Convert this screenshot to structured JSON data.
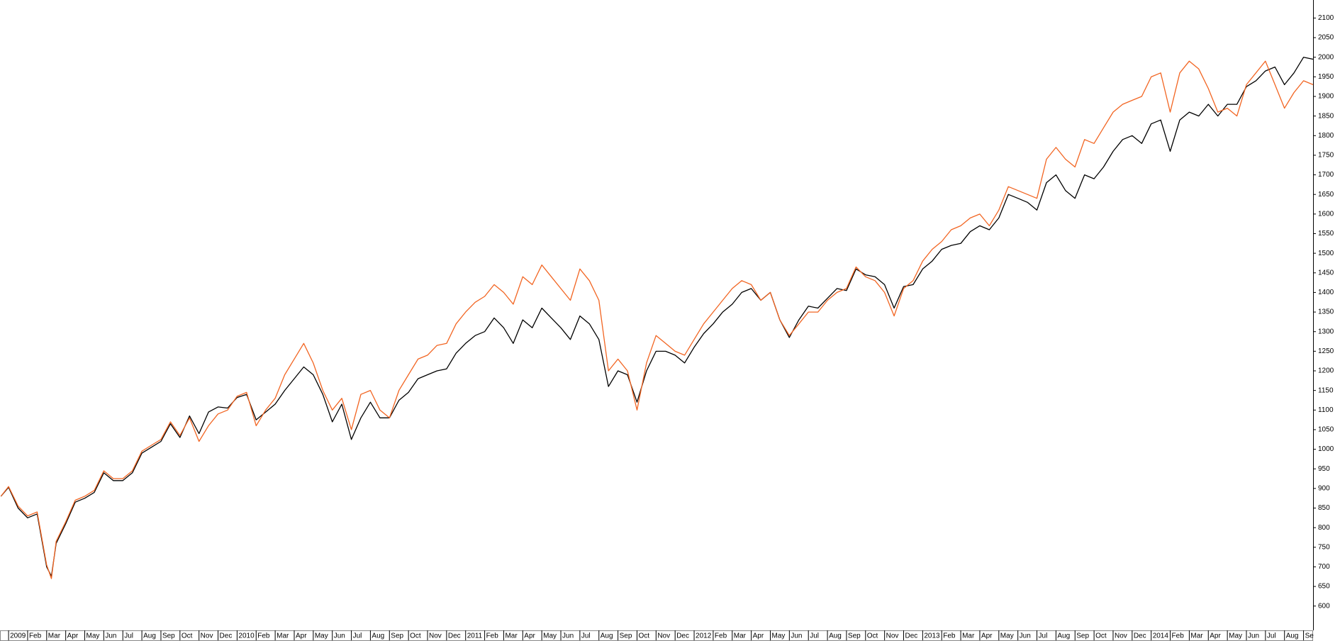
{
  "chart_data": {
    "type": "line",
    "x": [
      -0.4,
      0,
      0.5,
      1,
      1.5,
      2,
      2.25,
      2.5,
      3,
      3.5,
      4,
      4.5,
      5,
      5.5,
      6,
      6.5,
      7,
      7.5,
      8,
      8.5,
      9,
      9.5,
      10,
      10.5,
      11,
      11.5,
      12,
      12.5,
      13,
      13.5,
      14,
      14.5,
      15,
      15.5,
      16,
      16.5,
      17,
      17.5,
      18,
      18.5,
      19,
      19.5,
      20,
      20.5,
      21,
      21.5,
      22,
      22.5,
      23,
      23.5,
      24,
      24.5,
      25,
      25.5,
      26,
      26.5,
      27,
      27.5,
      28,
      28.5,
      29,
      29.5,
      30,
      30.5,
      31,
      31.5,
      32,
      32.5,
      33,
      33.5,
      34,
      34.5,
      35,
      35.5,
      36,
      36.5,
      37,
      37.5,
      38,
      38.5,
      39,
      39.5,
      40,
      40.5,
      41,
      41.5,
      42,
      42.5,
      43,
      43.5,
      44,
      44.5,
      45,
      45.5,
      46,
      46.5,
      47,
      47.5,
      48,
      48.5,
      49,
      49.5,
      50,
      50.5,
      51,
      51.5,
      52,
      52.5,
      53,
      53.5,
      54,
      54.5,
      55,
      55.5,
      56,
      56.5,
      57,
      57.5,
      58,
      58.5,
      59,
      59.5,
      60,
      60.5,
      61,
      61.5,
      62,
      62.5,
      63,
      63.5,
      64,
      64.5,
      65,
      65.5,
      66,
      66.5,
      67,
      67.5,
      68,
      68.5
    ],
    "series": [
      {
        "color": "#000000",
        "values": [
          880,
          903,
          850,
          825,
          835,
          700,
          676,
          760,
          810,
          865,
          875,
          890,
          940,
          920,
          920,
          940,
          990,
          1005,
          1020,
          1065,
          1030,
          1085,
          1040,
          1095,
          1108,
          1105,
          1132,
          1140,
          1075,
          1095,
          1115,
          1150,
          1180,
          1210,
          1190,
          1140,
          1070,
          1115,
          1025,
          1080,
          1120,
          1080,
          1080,
          1125,
          1145,
          1180,
          1190,
          1200,
          1205,
          1245,
          1270,
          1290,
          1300,
          1335,
          1310,
          1270,
          1330,
          1310,
          1360,
          1335,
          1310,
          1280,
          1340,
          1320,
          1280,
          1160,
          1200,
          1190,
          1120,
          1200,
          1250,
          1250,
          1240,
          1220,
          1260,
          1295,
          1320,
          1350,
          1370,
          1400,
          1410,
          1380,
          1400,
          1330,
          1285,
          1330,
          1365,
          1360,
          1385,
          1410,
          1405,
          1460,
          1445,
          1440,
          1420,
          1360,
          1415,
          1420,
          1460,
          1480,
          1510,
          1520,
          1525,
          1555,
          1570,
          1560,
          1590,
          1650,
          1640,
          1630,
          1610,
          1680,
          1700,
          1660,
          1640,
          1700,
          1690,
          1720,
          1760,
          1790,
          1800,
          1780,
          1830,
          1840,
          1760,
          1840,
          1860,
          1850,
          1880,
          1850,
          1880,
          1880,
          1925,
          1940,
          1965,
          1975,
          1930,
          1960,
          2000,
          1995
        ]
      },
      {
        "color": "#f26522",
        "values": [
          880,
          905,
          855,
          830,
          840,
          705,
          670,
          765,
          815,
          870,
          880,
          895,
          945,
          925,
          925,
          945,
          995,
          1010,
          1025,
          1070,
          1035,
          1080,
          1020,
          1060,
          1090,
          1100,
          1135,
          1145,
          1060,
          1100,
          1130,
          1190,
          1230,
          1270,
          1220,
          1150,
          1100,
          1130,
          1050,
          1140,
          1150,
          1100,
          1080,
          1150,
          1190,
          1230,
          1240,
          1265,
          1270,
          1320,
          1350,
          1375,
          1390,
          1420,
          1400,
          1370,
          1440,
          1420,
          1470,
          1440,
          1410,
          1380,
          1460,
          1430,
          1380,
          1200,
          1230,
          1200,
          1100,
          1220,
          1290,
          1270,
          1250,
          1240,
          1280,
          1320,
          1350,
          1380,
          1410,
          1430,
          1420,
          1380,
          1400,
          1330,
          1290,
          1320,
          1350,
          1350,
          1380,
          1400,
          1410,
          1465,
          1440,
          1430,
          1400,
          1340,
          1410,
          1430,
          1480,
          1510,
          1530,
          1560,
          1570,
          1590,
          1600,
          1570,
          1610,
          1670,
          1660,
          1650,
          1640,
          1740,
          1770,
          1740,
          1720,
          1790,
          1780,
          1820,
          1860,
          1880,
          1890,
          1900,
          1950,
          1960,
          1860,
          1960,
          1990,
          1970,
          1920,
          1860,
          1870,
          1850,
          1930,
          1960,
          1990,
          1930,
          1870,
          1910,
          1940,
          1930
        ]
      }
    ],
    "xlim": [
      -0.45,
      68.5
    ],
    "xticks": [
      {
        "value": 0,
        "label": "2009"
      },
      {
        "value": 1,
        "label": "Feb"
      },
      {
        "value": 2,
        "label": "Mar"
      },
      {
        "value": 3,
        "label": "Apr"
      },
      {
        "value": 4,
        "label": "May"
      },
      {
        "value": 5,
        "label": "Jun"
      },
      {
        "value": 6,
        "label": "Jul"
      },
      {
        "value": 7,
        "label": "Aug"
      },
      {
        "value": 8,
        "label": "Sep"
      },
      {
        "value": 9,
        "label": "Oct"
      },
      {
        "value": 10,
        "label": "Nov"
      },
      {
        "value": 11,
        "label": "Dec"
      },
      {
        "value": 12,
        "label": "2010"
      },
      {
        "value": 13,
        "label": "Feb"
      },
      {
        "value": 14,
        "label": "Mar"
      },
      {
        "value": 15,
        "label": "Apr"
      },
      {
        "value": 16,
        "label": "May"
      },
      {
        "value": 17,
        "label": "Jun"
      },
      {
        "value": 18,
        "label": "Jul"
      },
      {
        "value": 19,
        "label": "Aug"
      },
      {
        "value": 20,
        "label": "Sep"
      },
      {
        "value": 21,
        "label": "Oct"
      },
      {
        "value": 22,
        "label": "Nov"
      },
      {
        "value": 23,
        "label": "Dec"
      },
      {
        "value": 24,
        "label": "2011"
      },
      {
        "value": 25,
        "label": "Feb"
      },
      {
        "value": 26,
        "label": "Mar"
      },
      {
        "value": 27,
        "label": "Apr"
      },
      {
        "value": 28,
        "label": "May"
      },
      {
        "value": 29,
        "label": "Jun"
      },
      {
        "value": 30,
        "label": "Jul"
      },
      {
        "value": 31,
        "label": "Aug"
      },
      {
        "value": 32,
        "label": "Sep"
      },
      {
        "value": 33,
        "label": "Oct"
      },
      {
        "value": 34,
        "label": "Nov"
      },
      {
        "value": 35,
        "label": "Dec"
      },
      {
        "value": 36,
        "label": "2012"
      },
      {
        "value": 37,
        "label": "Feb"
      },
      {
        "value": 38,
        "label": "Mar"
      },
      {
        "value": 39,
        "label": "Apr"
      },
      {
        "value": 40,
        "label": "May"
      },
      {
        "value": 41,
        "label": "Jun"
      },
      {
        "value": 42,
        "label": "Jul"
      },
      {
        "value": 43,
        "label": "Aug"
      },
      {
        "value": 44,
        "label": "Sep"
      },
      {
        "value": 45,
        "label": "Oct"
      },
      {
        "value": 46,
        "label": "Nov"
      },
      {
        "value": 47,
        "label": "Dec"
      },
      {
        "value": 48,
        "label": "2013"
      },
      {
        "value": 49,
        "label": "Feb"
      },
      {
        "value": 50,
        "label": "Mar"
      },
      {
        "value": 51,
        "label": "Apr"
      },
      {
        "value": 52,
        "label": "May"
      },
      {
        "value": 53,
        "label": "Jun"
      },
      {
        "value": 54,
        "label": "Jul"
      },
      {
        "value": 55,
        "label": "Aug"
      },
      {
        "value": 56,
        "label": "Sep"
      },
      {
        "value": 57,
        "label": "Oct"
      },
      {
        "value": 58,
        "label": "Nov"
      },
      {
        "value": 59,
        "label": "Dec"
      },
      {
        "value": 60,
        "label": "2014"
      },
      {
        "value": 61,
        "label": "Feb"
      },
      {
        "value": 62,
        "label": "Mar"
      },
      {
        "value": 63,
        "label": "Apr"
      },
      {
        "value": 64,
        "label": "May"
      },
      {
        "value": 65,
        "label": "Jun"
      },
      {
        "value": 66,
        "label": "Jul"
      },
      {
        "value": 67,
        "label": "Aug"
      },
      {
        "value": 68,
        "label": "Se"
      }
    ],
    "ylim": [
      538,
      2146
    ],
    "yticks": [
      600,
      650,
      700,
      750,
      800,
      850,
      900,
      950,
      1000,
      1050,
      1100,
      1150,
      1200,
      1250,
      1300,
      1350,
      1400,
      1450,
      1500,
      1550,
      1600,
      1650,
      1700,
      1750,
      1800,
      1850,
      1900,
      1950,
      2000,
      2050,
      2100
    ]
  }
}
